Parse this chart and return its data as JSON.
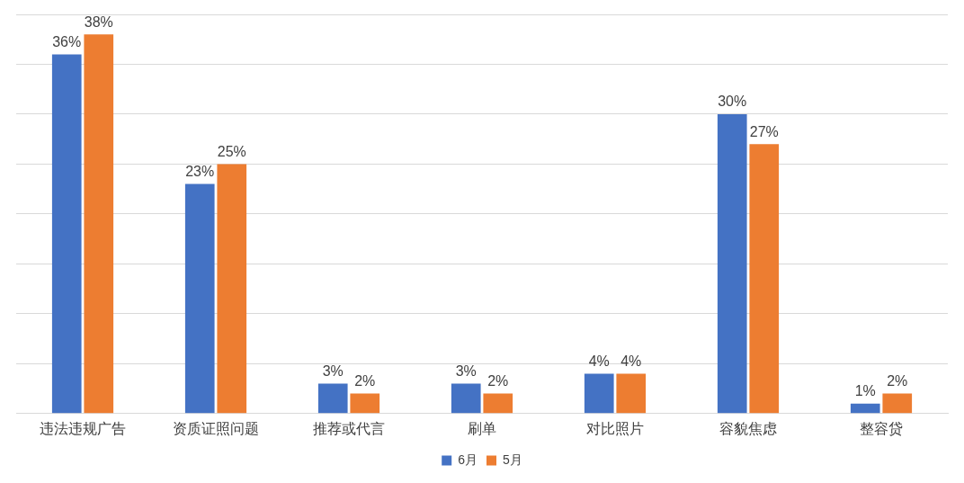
{
  "chart_data": {
    "type": "bar",
    "categories": [
      "违法违规广告",
      "资质证照问题",
      "推荐或代言",
      "刷单",
      "对比照片",
      "容貌焦虑",
      "整容贷"
    ],
    "series": [
      {
        "name": "6月",
        "color": "#4472c4",
        "values": [
          36,
          23,
          3,
          3,
          4,
          30,
          1
        ],
        "value_labels": [
          "36%",
          "23%",
          "3%",
          "3%",
          "4%",
          "30%",
          "1%"
        ]
      },
      {
        "name": "5月",
        "color": "#ed7d31",
        "values": [
          38,
          25,
          2,
          2,
          4,
          27,
          2
        ],
        "value_labels": [
          "38%",
          "25%",
          "2%",
          "2%",
          "4%",
          "27%",
          "2%"
        ]
      }
    ],
    "ylim": [
      0,
      40
    ],
    "yticks": [
      {
        "value": 0,
        "label": null
      },
      {
        "value": 5,
        "label": null
      },
      {
        "value": 10,
        "label": null
      },
      {
        "value": 15,
        "label": null
      },
      {
        "value": 20,
        "label": null
      },
      {
        "value": 25,
        "label": null
      },
      {
        "value": 30,
        "label": null
      },
      {
        "value": 35,
        "label": null
      },
      {
        "value": 40,
        "label": null
      }
    ],
    "tick_labels": "x",
    "grid": "y",
    "legend": "bottom"
  }
}
